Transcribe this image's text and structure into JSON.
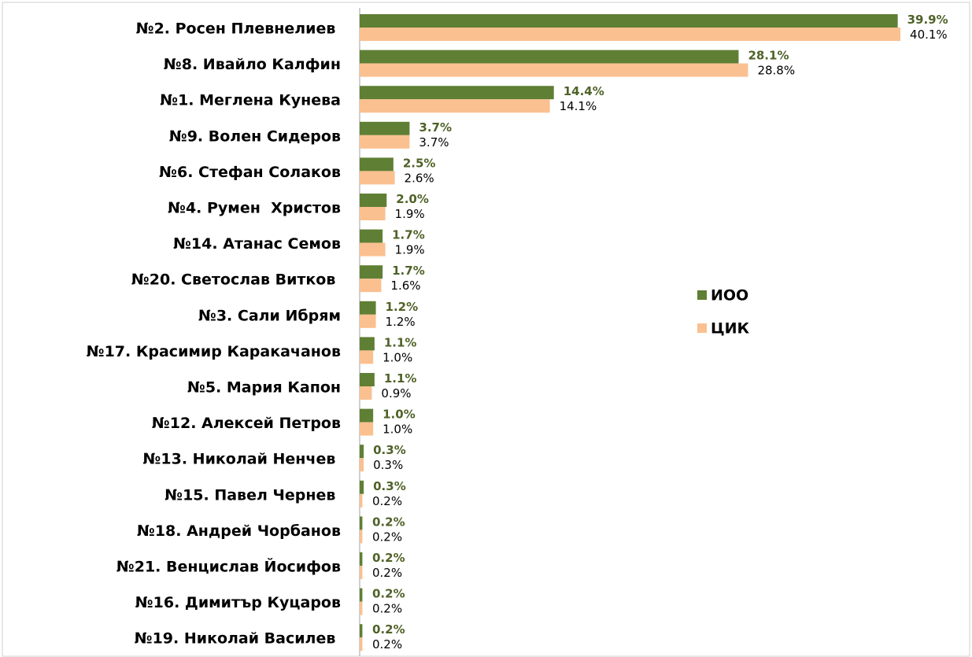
{
  "chart_data": {
    "type": "hbar",
    "categories": [
      "№2. Росен Плевнелиев ",
      "№8. Ивайло Калфин",
      "№1. Меглена Кунева",
      "№9. Волен Сидеров",
      "№6. Стефан Солаков",
      "№4. Румен  Христов",
      "№14. Атанас Семов",
      "№20. Светослав Витков ",
      "№3. Сали Ибрям",
      "№17. Красимир Каракачанов",
      "№5. Мария Капон",
      "№12. Алексей Петров",
      "№13. Николай Ненчев ",
      "№15. Павел Чернев ",
      "№18. Андрей Чорбанов",
      "№21. Венцислав Йосифов",
      "№16. Димитър Куцаров",
      "№19. Николай Василев "
    ],
    "series": [
      {
        "name": "ИОО",
        "color": "#5f7f34",
        "label_color": "#4f6228",
        "values": [
          39.9,
          28.1,
          14.4,
          3.7,
          2.5,
          2.0,
          1.7,
          1.7,
          1.2,
          1.1,
          1.1,
          1.0,
          0.3,
          0.3,
          0.2,
          0.2,
          0.2,
          0.2
        ],
        "value_labels": [
          "39.9%",
          "28.1%",
          "14.4%",
          "3.7%",
          "2.5%",
          "2.0%",
          "1.7%",
          "1.7%",
          "1.2%",
          "1.1%",
          "1.1%",
          "1.0%",
          "0.3%",
          "0.3%",
          "0.2%",
          "0.2%",
          "0.2%",
          "0.2%"
        ]
      },
      {
        "name": "ЦИК",
        "color": "#fac090",
        "label_color": "#000000",
        "values": [
          40.1,
          28.8,
          14.1,
          3.7,
          2.6,
          1.9,
          1.9,
          1.6,
          1.2,
          1.0,
          0.9,
          1.0,
          0.3,
          0.2,
          0.2,
          0.2,
          0.2,
          0.2
        ],
        "value_labels": [
          "40.1%",
          "28.8%",
          "14.1%",
          "3.7%",
          "2.6%",
          "1.9%",
          "1.9%",
          "1.6%",
          "1.2%",
          "1.0%",
          "0.9%",
          "1.0%",
          "0.3%",
          "0.2%",
          "0.2%",
          "0.2%",
          "0.2%",
          "0.2%"
        ]
      }
    ],
    "xlim": [
      0,
      45
    ]
  }
}
